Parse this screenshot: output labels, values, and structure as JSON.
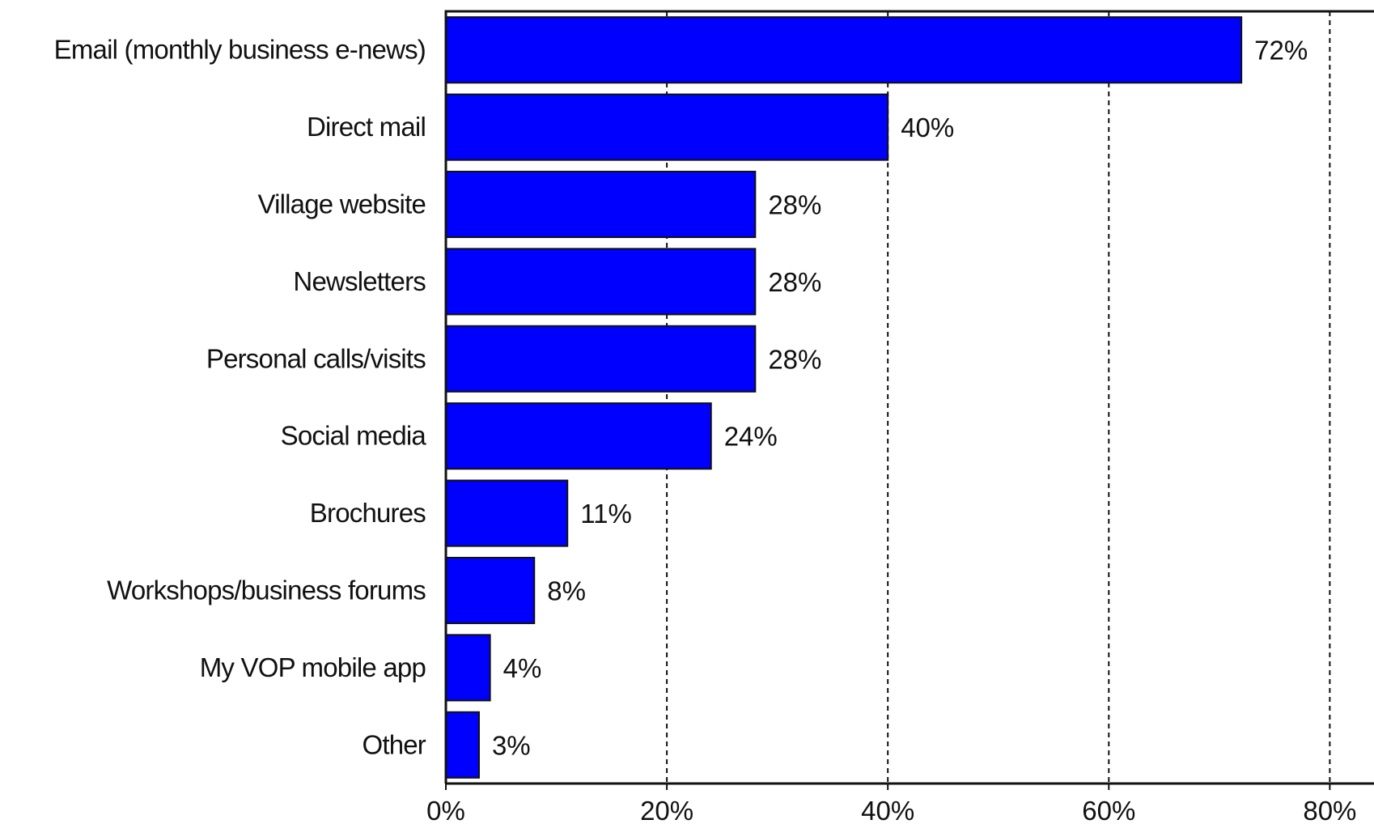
{
  "chart_data": {
    "type": "bar",
    "orientation": "horizontal",
    "categories": [
      "Email (monthly business e-news)",
      "Direct mail",
      "Village website",
      "Newsletters",
      "Personal calls/visits",
      "Social media",
      "Brochures",
      "Workshops/business forums",
      "My VOP mobile app",
      "Other"
    ],
    "values": [
      72,
      40,
      28,
      28,
      28,
      24,
      11,
      8,
      4,
      3
    ],
    "value_labels": [
      "72%",
      "40%",
      "28%",
      "28%",
      "28%",
      "24%",
      "11%",
      "8%",
      "4%",
      "3%"
    ],
    "x_ticks": [
      0,
      20,
      40,
      60,
      80
    ],
    "x_tick_labels": [
      "0%",
      "20%",
      "40%",
      "60%",
      "80%"
    ],
    "xlim": [
      0,
      84
    ],
    "grid": "vertical dashed",
    "bar_color": "#0000FF",
    "title": "",
    "xlabel": "",
    "ylabel": ""
  }
}
